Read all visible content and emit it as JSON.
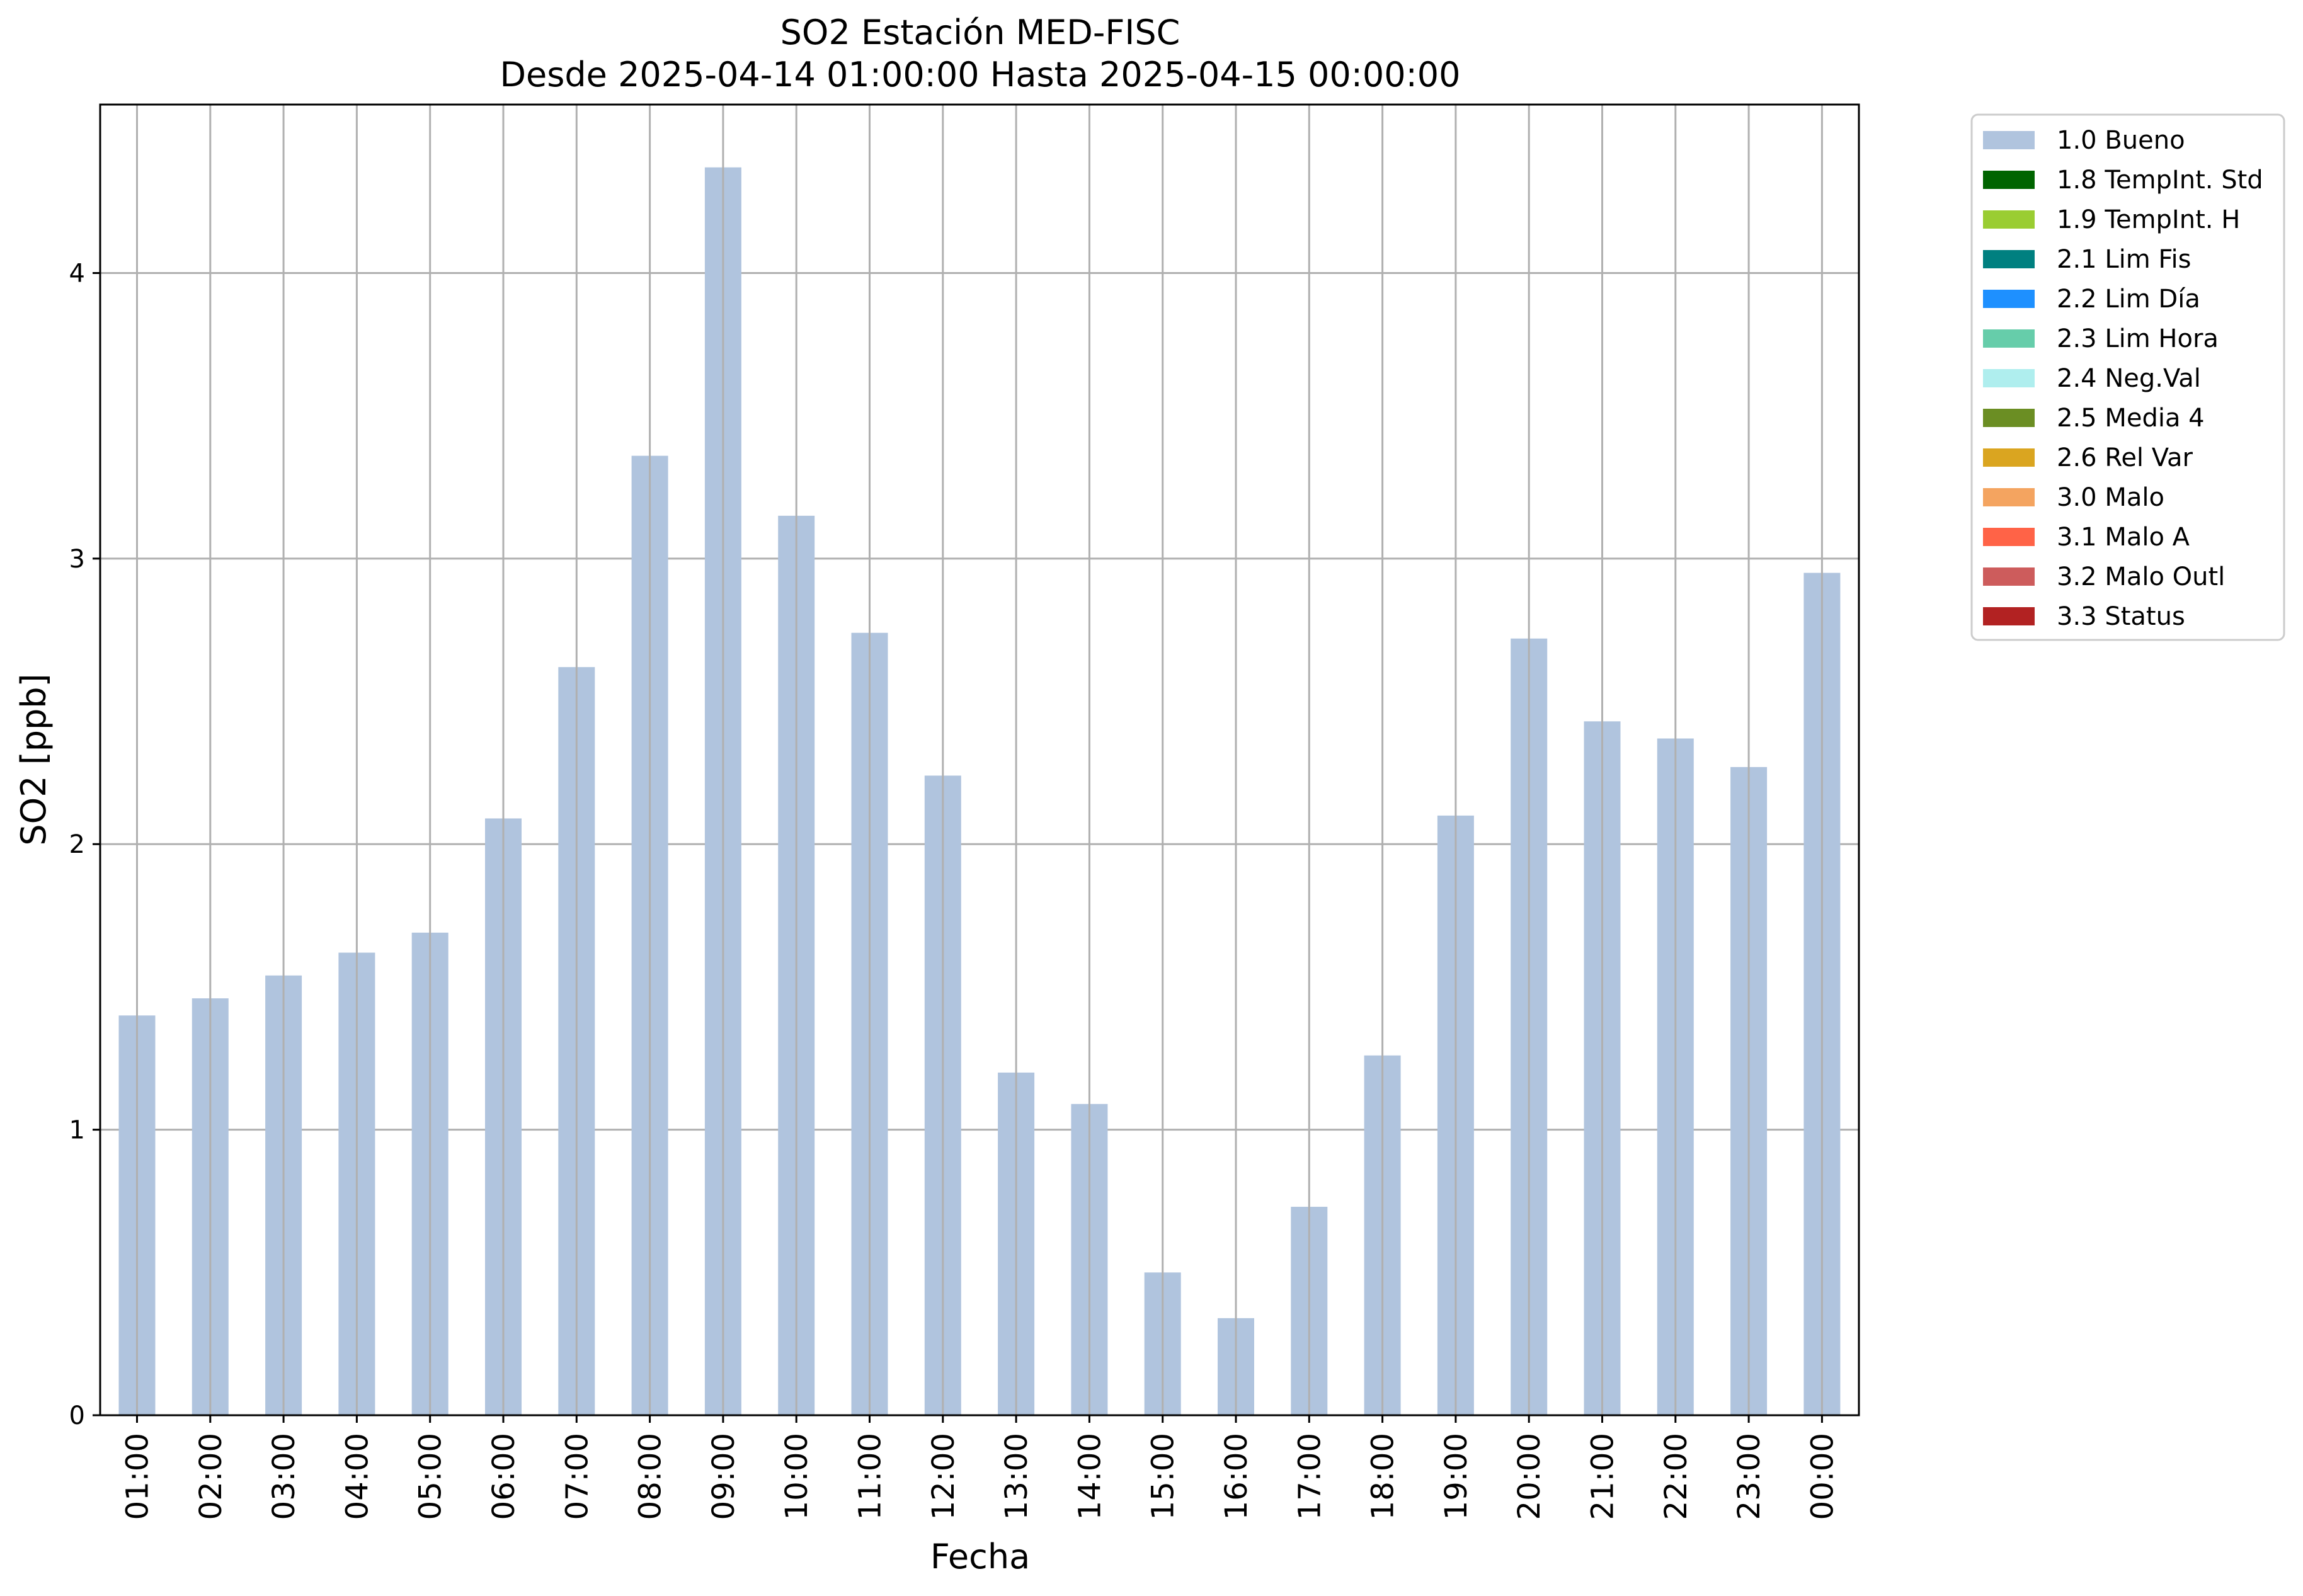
{
  "chart_data": {
    "type": "bar",
    "title": "SO2 Estación MED-FISC",
    "subtitle": "Desde 2025-04-14 01:00:00 Hasta 2025-04-15 00:00:00",
    "xlabel": "Fecha",
    "ylabel": "SO2 [ppb]",
    "ylim": [
      0,
      4.59
    ],
    "yticks": [
      0,
      1,
      2,
      3,
      4
    ],
    "grid": true,
    "legend_position": "outside-right-top",
    "categories": [
      "01:00",
      "02:00",
      "03:00",
      "04:00",
      "05:00",
      "06:00",
      "07:00",
      "08:00",
      "09:00",
      "10:00",
      "11:00",
      "12:00",
      "13:00",
      "14:00",
      "15:00",
      "16:00",
      "17:00",
      "18:00",
      "19:00",
      "20:00",
      "21:00",
      "22:00",
      "23:00",
      "00:00"
    ],
    "series": [
      {
        "name": "1.0 Bueno",
        "color": "#b0c4de",
        "values": [
          1.4,
          1.46,
          1.54,
          1.62,
          1.69,
          2.09,
          2.62,
          3.36,
          4.37,
          3.15,
          2.74,
          2.24,
          1.2,
          1.09,
          0.5,
          0.34,
          0.73,
          1.26,
          2.1,
          2.72,
          2.43,
          2.37,
          2.27,
          2.95
        ]
      }
    ],
    "legend": [
      {
        "label": "1.0 Bueno",
        "color": "#b0c4de"
      },
      {
        "label": "1.8 TempInt. Std",
        "color": "#006400"
      },
      {
        "label": "1.9 TempInt. H",
        "color": "#9acd32"
      },
      {
        "label": "2.1 Lim Fis",
        "color": "#008080"
      },
      {
        "label": "2.2 Lim Día",
        "color": "#1e90ff"
      },
      {
        "label": "2.3 Lim Hora",
        "color": "#66cdaa"
      },
      {
        "label": "2.4 Neg.Val",
        "color": "#afeeee"
      },
      {
        "label": "2.5 Media 4",
        "color": "#6b8e23"
      },
      {
        "label": "2.6 Rel Var",
        "color": "#daa520"
      },
      {
        "label": "3.0 Malo",
        "color": "#f4a460"
      },
      {
        "label": "3.1 Malo A",
        "color": "#ff6347"
      },
      {
        "label": "3.2 Malo Outl",
        "color": "#cd5c5c"
      },
      {
        "label": "3.3 Status",
        "color": "#b22222"
      }
    ]
  }
}
